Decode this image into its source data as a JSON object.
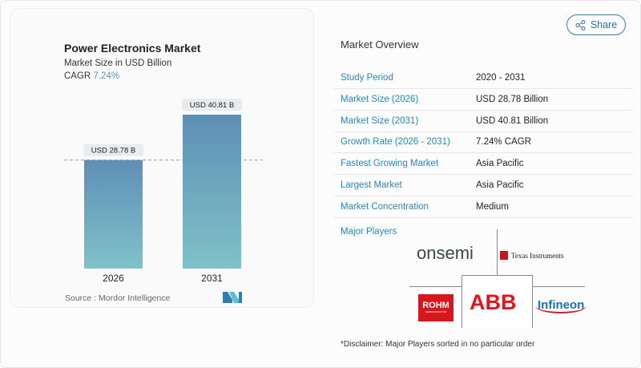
{
  "share": {
    "label": "Share",
    "icon": "share-icon"
  },
  "card": {
    "title": "Power Electronics Market",
    "subtitle": "Market Size in USD Billion",
    "cagr_label": "CAGR",
    "cagr_value": "7.24%",
    "source": "Source :  Mordor Intelligence"
  },
  "chart_data": {
    "type": "bar",
    "categories": [
      "2026",
      "2031"
    ],
    "values": [
      28.78,
      40.81
    ],
    "data_labels": [
      "USD 28.78 B",
      "USD 40.81 B"
    ],
    "ylim": [
      0,
      40.81
    ],
    "reference_line": 28.78,
    "colors": {
      "top": "#5e8fb5",
      "bottom": "#7fc2c8"
    }
  },
  "overview": {
    "title": "Market Overview",
    "rows": [
      {
        "label": "Study Period",
        "value": "2020 - 2031"
      },
      {
        "label": "Market Size (2026)",
        "value": "USD 28.78 Billion"
      },
      {
        "label": "Market Size (2031)",
        "value": "USD 40.81 Billion"
      },
      {
        "label": "Growth Rate (2026 - 2031)",
        "value": "7.24% CAGR"
      },
      {
        "label": "Fastest Growing Market",
        "value": "Asia Pacific"
      },
      {
        "label": "Largest Market",
        "value": "Asia Pacific"
      },
      {
        "label": "Market Concentration",
        "value": "Medium"
      }
    ]
  },
  "players": {
    "title": "Major Players",
    "logos": [
      "onsemi",
      "Texas Instruments",
      "ROHM",
      "ABB",
      "Infineon"
    ],
    "rohm_sub": "SEMICONDUCTOR",
    "disclaimer": "*Disclaimer: Major Players sorted in no particular order"
  }
}
